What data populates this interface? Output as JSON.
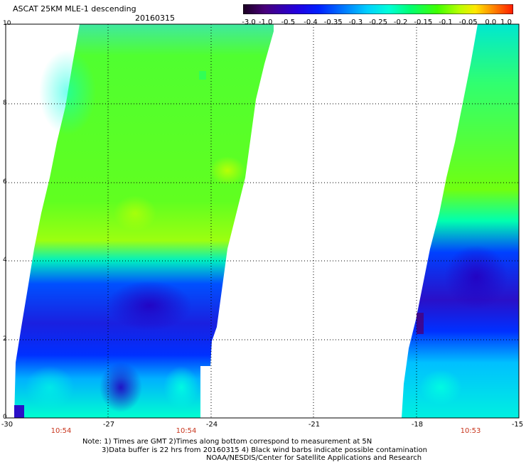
{
  "header": {
    "title": "ASCAT 25KM MLE-1 descending",
    "date": "20160315"
  },
  "colorbar": {
    "labels": [
      "-3.0",
      "-1.0",
      "-0.5",
      "-0.4",
      "-0.35",
      "-0.3",
      "-0.25",
      "-0.2",
      "-0.15",
      "-0.1",
      "-0.05",
      "0.0",
      "1.0"
    ],
    "colors": [
      "#2a0030",
      "#48007a",
      "#3300c8",
      "#0014f0",
      "#0058ff",
      "#0098ff",
      "#00d8ff",
      "#00ffc8",
      "#00ff6a",
      "#40ff00",
      "#b0ff00",
      "#ffe000",
      "#ff7a00",
      "#ff1e00"
    ]
  },
  "axes": {
    "x_ticks": [
      "-30",
      "-27",
      "-24",
      "-21",
      "-18",
      "-15"
    ],
    "y_ticks": [
      "10",
      "8",
      "6",
      "4",
      "2",
      "0"
    ],
    "pass_times": [
      "10:54",
      "10:54",
      "10:53"
    ]
  },
  "notes": [
    "Note: 1) Times are GMT 2)Times along bottom correspond to measurement at 5N",
    "3)Data buffer is 22 hrs from 20160315 4) Black wind barbs indicate possible contamination",
    "NOAA/NESDIS/Center for Satellite Applications and Research"
  ]
}
